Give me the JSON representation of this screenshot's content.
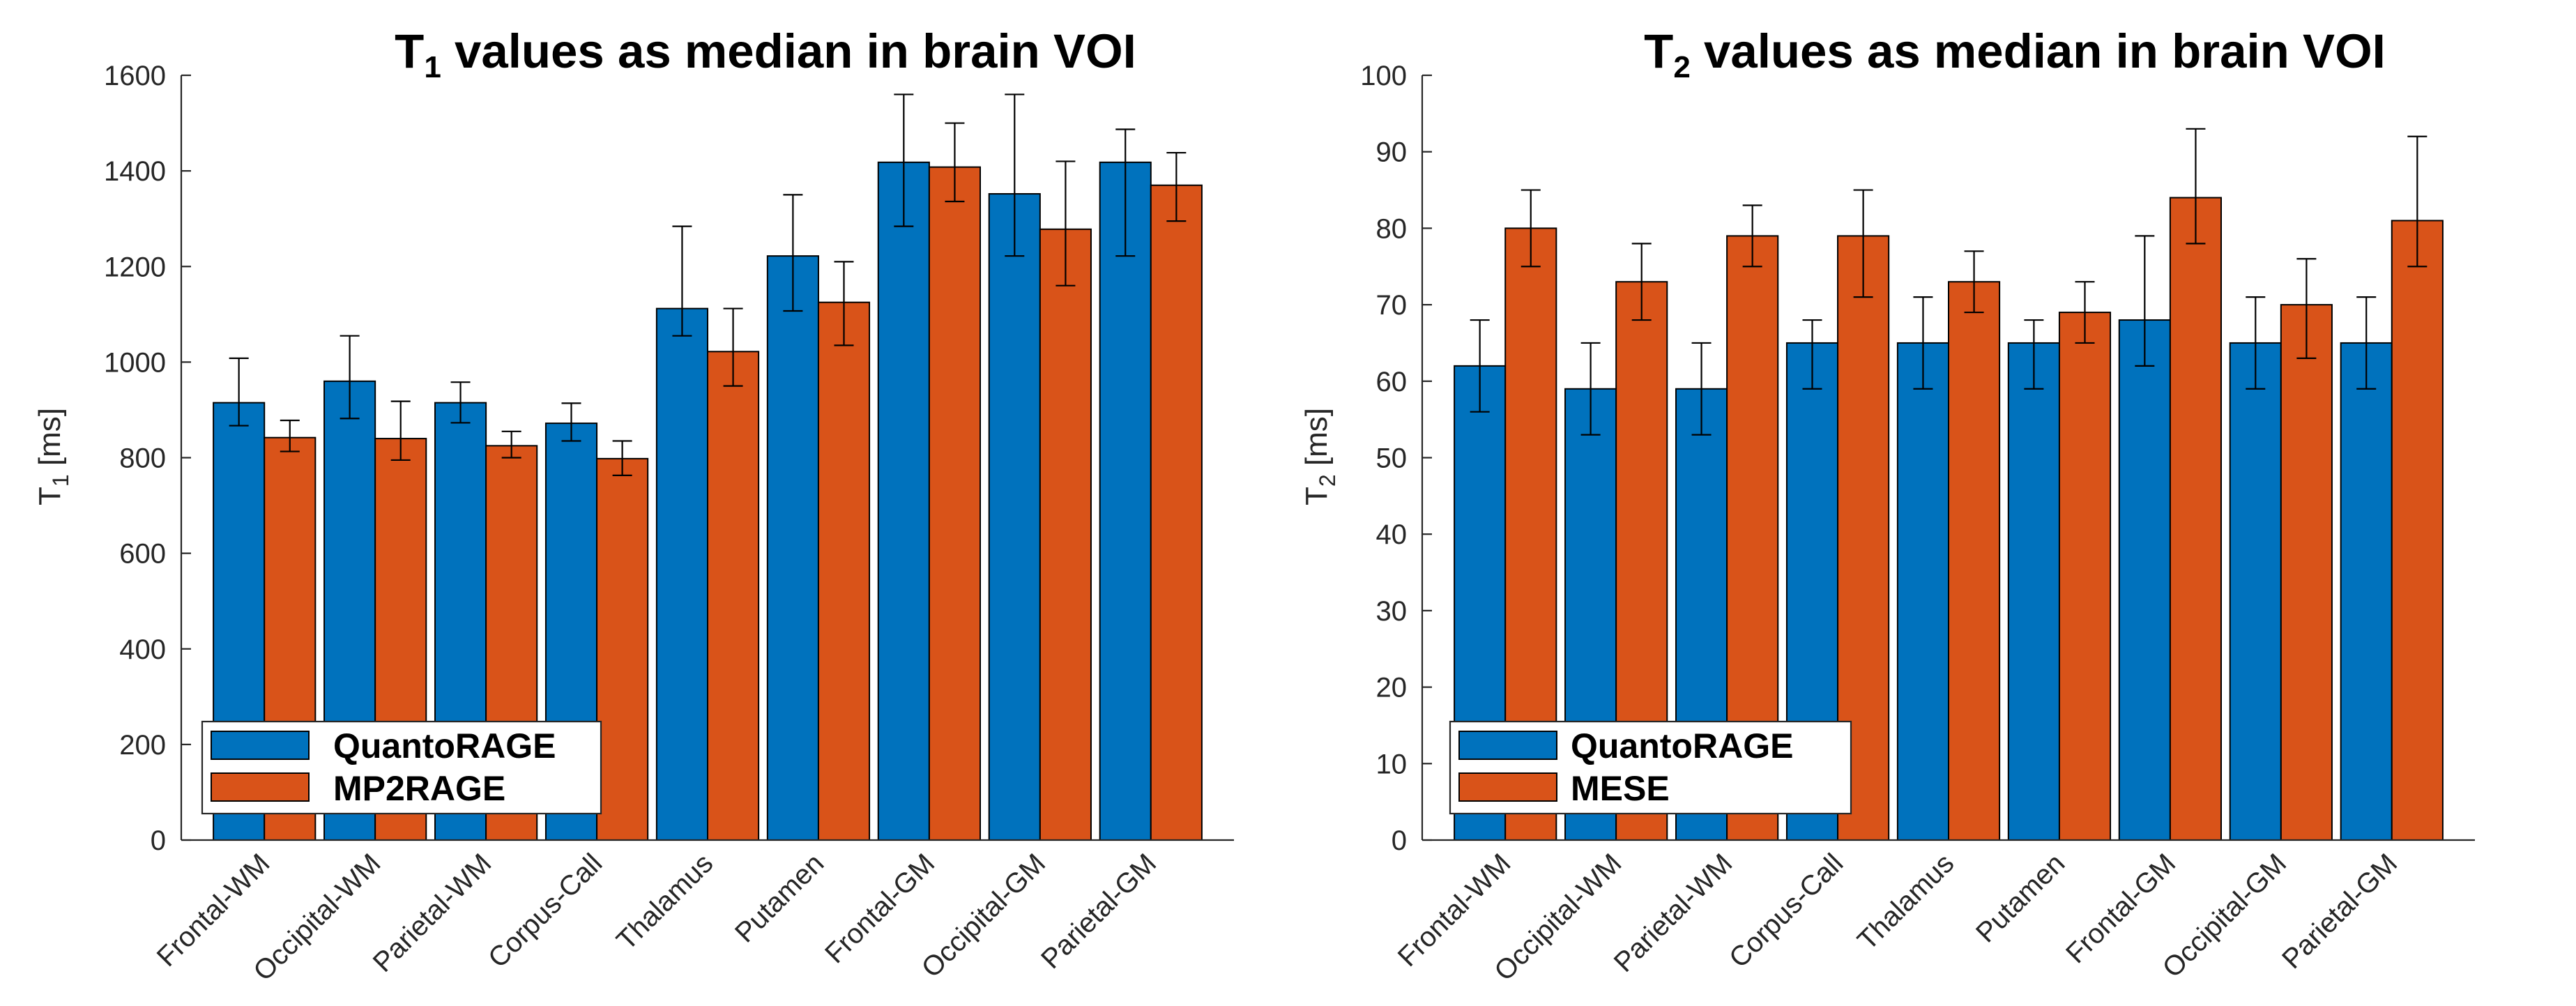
{
  "colors": {
    "series1": "#0072BD",
    "series2": "#D95319"
  },
  "chart_data": [
    {
      "type": "bar",
      "title_main": "T",
      "title_sub": "1",
      "title_rest": " values as median in brain VOI",
      "ylabel_main": "T",
      "ylabel_sub": "1",
      "ylabel_unit": " [ms]",
      "ylim": [
        0,
        1600
      ],
      "yticks": [
        0,
        200,
        400,
        600,
        800,
        1000,
        1200,
        1400,
        1600
      ],
      "categories": [
        "Frontal-WM",
        "Occipital-WM",
        "Parietal-WM",
        "Corpus-Call",
        "Thalamus",
        "Putamen",
        "Frontal-GM",
        "Occipital-GM",
        "Parietal-GM"
      ],
      "legend_position": "bottom-left",
      "series": [
        {
          "name": "QuantoRAGE",
          "values": [
            915,
            960,
            915,
            872,
            1112,
            1222,
            1418,
            1352,
            1418
          ],
          "err_low": [
            867,
            882,
            873,
            835,
            1055,
            1107,
            1284,
            1222,
            1222
          ],
          "err_high": [
            1008,
            1055,
            958,
            914,
            1284,
            1350,
            1560,
            1560,
            1487
          ]
        },
        {
          "name": "MP2RAGE",
          "values": [
            842,
            840,
            825,
            798,
            1022,
            1125,
            1408,
            1278,
            1370
          ],
          "err_low": [
            813,
            795,
            800,
            763,
            950,
            1035,
            1336,
            1160,
            1295
          ],
          "err_high": [
            878,
            918,
            855,
            835,
            1112,
            1210,
            1500,
            1420,
            1438
          ]
        }
      ]
    },
    {
      "type": "bar",
      "title_main": "T",
      "title_sub": "2",
      "title_rest": " values as median in brain VOI",
      "ylabel_main": "T",
      "ylabel_sub": "2",
      "ylabel_unit": " [ms]",
      "ylim": [
        0,
        100
      ],
      "yticks": [
        0,
        10,
        20,
        30,
        40,
        50,
        60,
        70,
        80,
        90,
        100
      ],
      "categories": [
        "Frontal-WM",
        "Occipital-WM",
        "Parietal-WM",
        "Corpus-Call",
        "Thalamus",
        "Putamen",
        "Frontal-GM",
        "Occipital-GM",
        "Parietal-GM"
      ],
      "legend_position": "bottom-left",
      "series": [
        {
          "name": "QuantoRAGE",
          "values": [
            62,
            59,
            59,
            65,
            65,
            65,
            68,
            65,
            65
          ],
          "err_low": [
            56,
            53,
            53,
            59,
            59,
            59,
            62,
            59,
            59
          ],
          "err_high": [
            68,
            65,
            65,
            68,
            71,
            68,
            79,
            71,
            71
          ]
        },
        {
          "name": "MESE",
          "values": [
            80,
            73,
            79,
            79,
            73,
            69,
            84,
            70,
            81
          ],
          "err_low": [
            75,
            68,
            75,
            71,
            69,
            65,
            78,
            63,
            75
          ],
          "err_high": [
            85,
            78,
            83,
            85,
            77,
            73,
            93,
            76,
            92
          ]
        }
      ]
    }
  ]
}
